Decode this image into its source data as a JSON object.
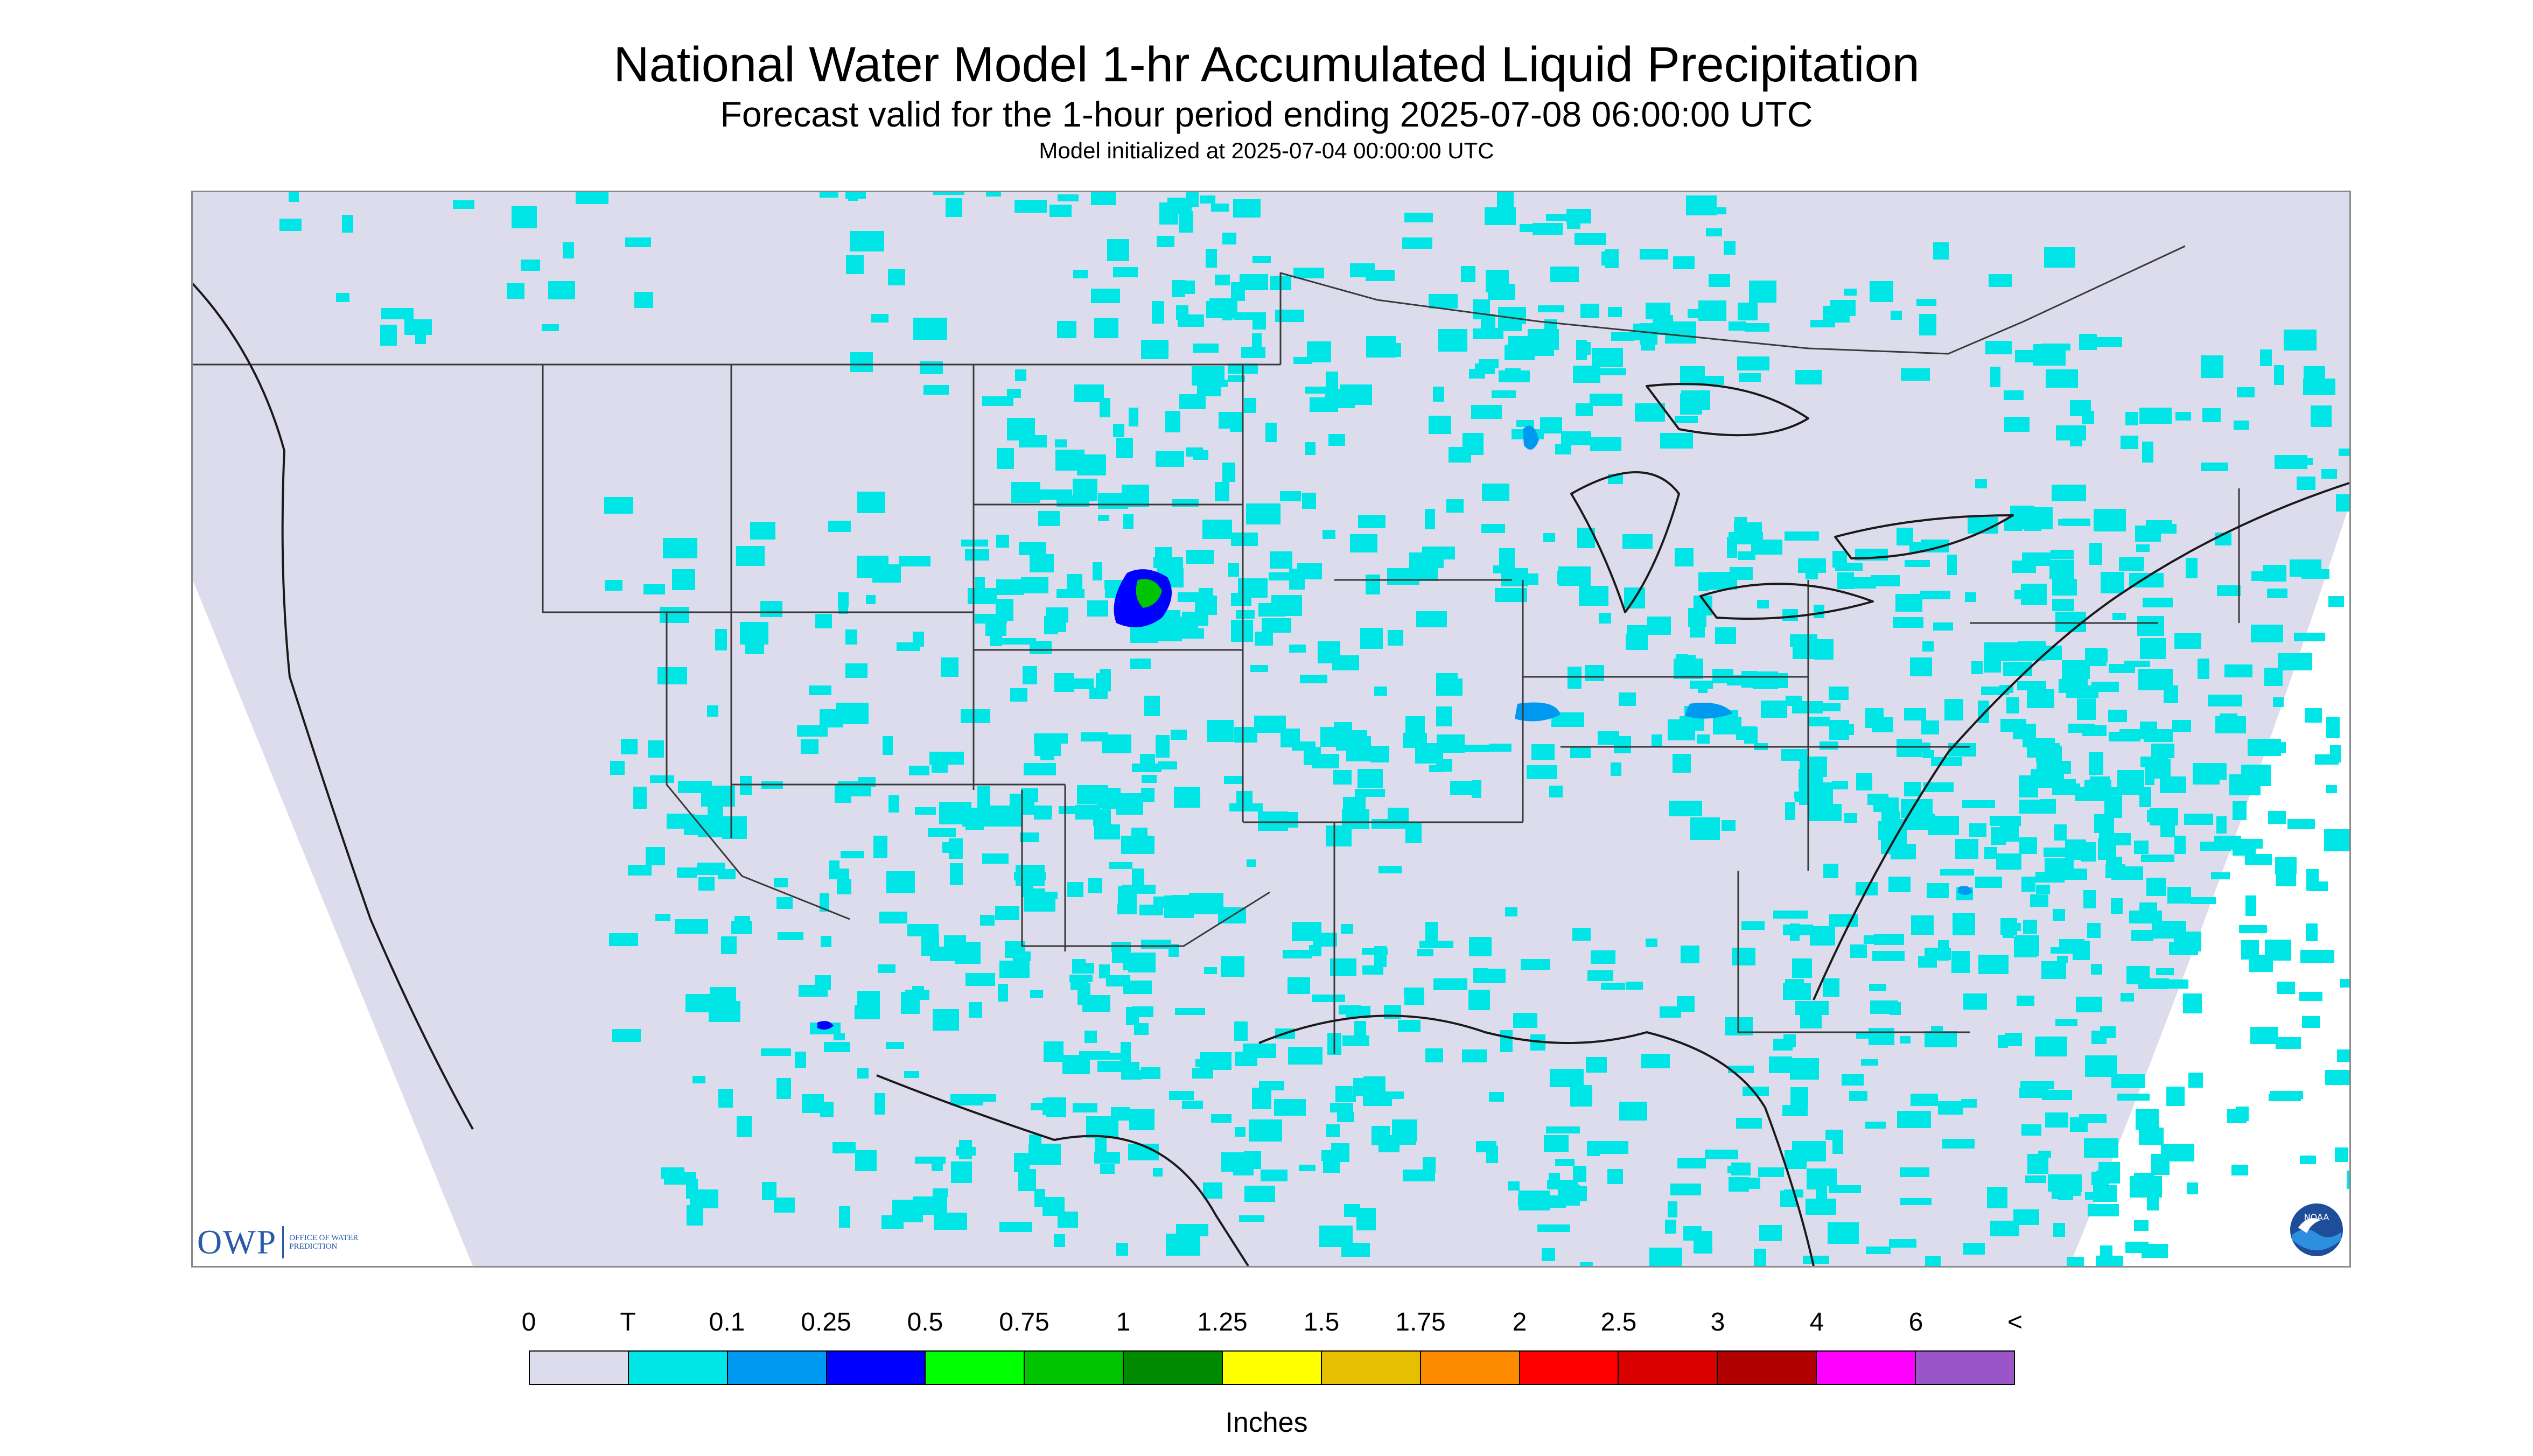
{
  "header": {
    "title": "National Water Model 1-hr Accumulated Liquid Precipitation",
    "subtitle": "Forecast valid for the 1-hour period ending 2025-07-08 06:00:00 UTC",
    "init_line": "Model initialized at 2025-07-04 00:00:00 UTC"
  },
  "map": {
    "background_color": "#dcdcec",
    "outside_domain_color": "#ffffff",
    "boundary_color": "#3a3a3a",
    "light_precip_color": "#00e5e5",
    "moderate_precip_color": "#0099f2",
    "heavy_precip_color": "#0000ff",
    "peak_precip_color": "#00c400",
    "icons": [
      "owp-logo",
      "noaa-logo"
    ]
  },
  "logos": {
    "owp_letters": "OWP",
    "owp_subtitle": "Office of Water Prediction",
    "noaa_text": "NOAA"
  },
  "legend": {
    "labels": [
      "0",
      "T",
      "0.1",
      "0.25",
      "0.5",
      "0.75",
      "1",
      "1.25",
      "1.5",
      "1.75",
      "2",
      "2.5",
      "3",
      "4",
      "6",
      "<"
    ],
    "colors": [
      "#dcdcec",
      "#00e5e5",
      "#0099f2",
      "#0000ff",
      "#00ff00",
      "#00c400",
      "#008a00",
      "#ffff00",
      "#e6bf00",
      "#ff8c00",
      "#ff0000",
      "#d90000",
      "#b00000",
      "#ff00ff",
      "#9a55c8"
    ],
    "units": "Inches"
  }
}
